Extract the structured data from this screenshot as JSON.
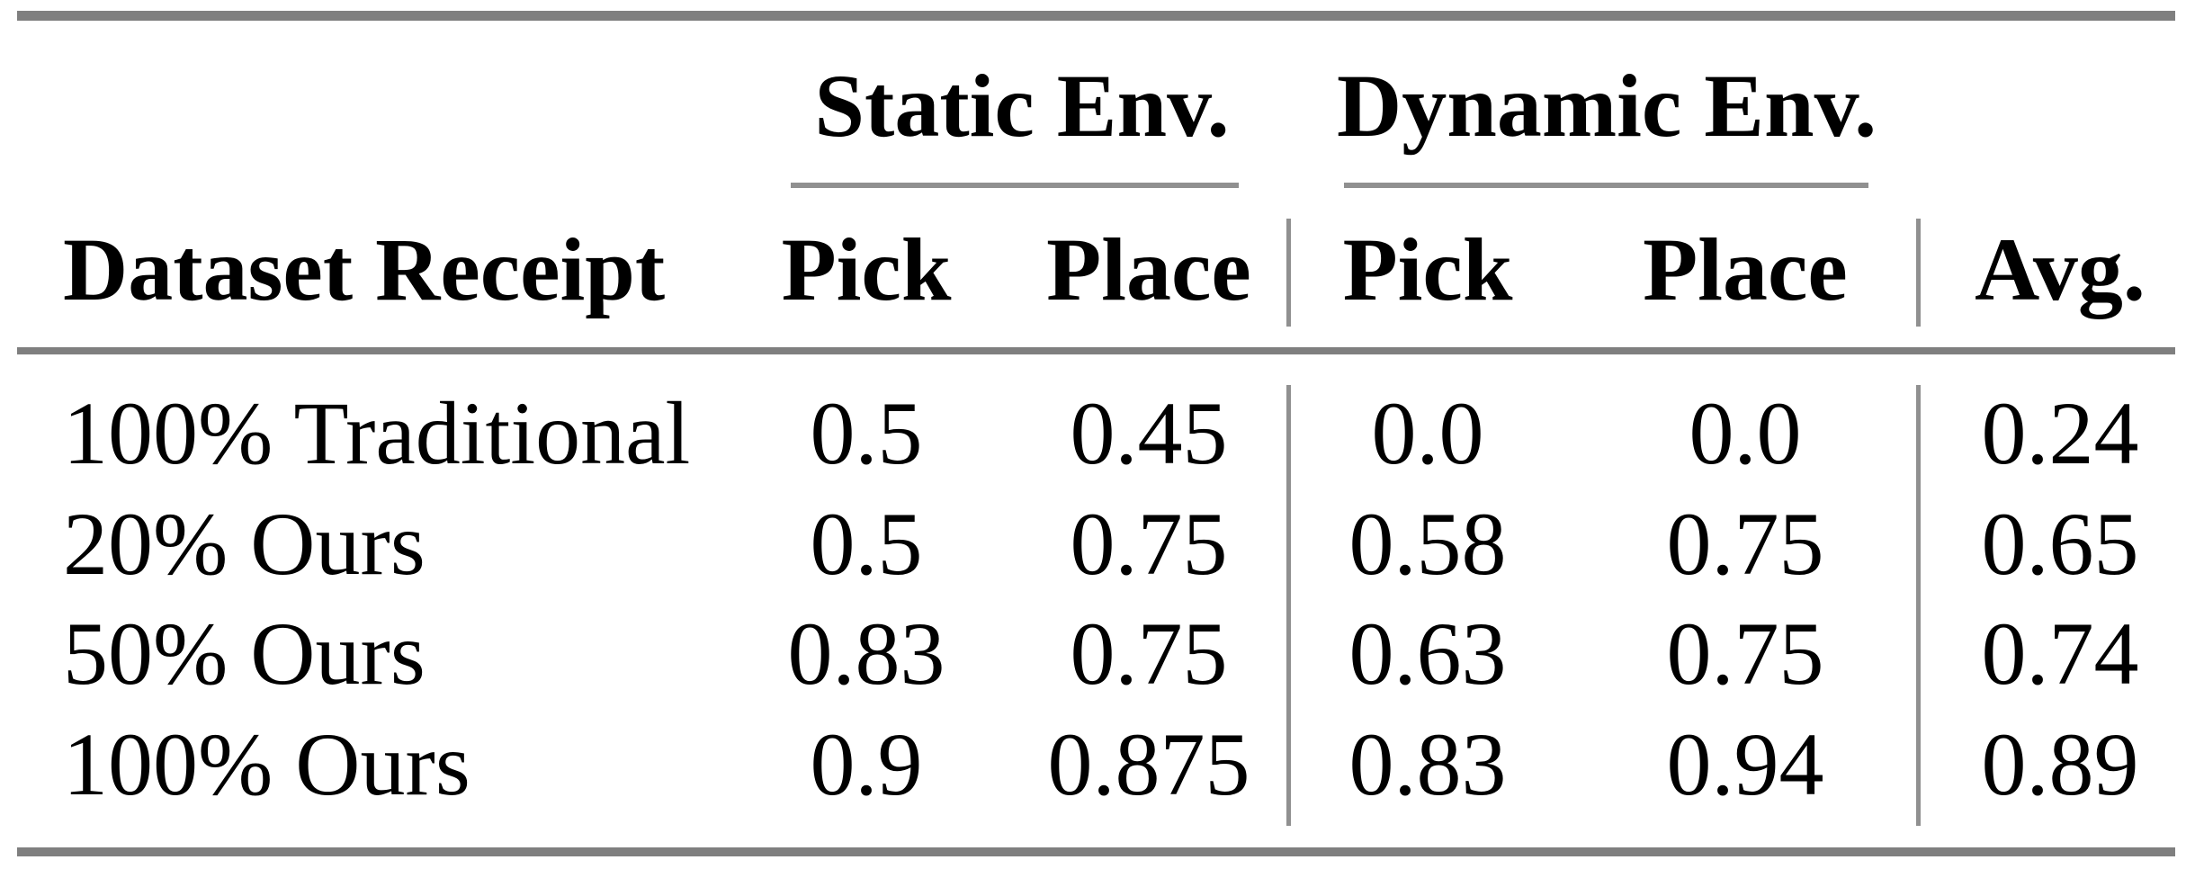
{
  "table": {
    "group_headers": [
      {
        "label": "Static Env."
      },
      {
        "label": "Dynamic Env."
      }
    ],
    "columns": [
      "Dataset Receipt",
      "Pick",
      "Place",
      "Pick",
      "Place",
      "Avg."
    ],
    "rows": [
      {
        "label": "100% Traditional",
        "values": [
          "0.5",
          "0.45",
          "0.0",
          "0.0",
          "0.24"
        ]
      },
      {
        "label": "20% Ours",
        "values": [
          "0.5",
          "0.75",
          "0.58",
          "0.75",
          "0.65"
        ]
      },
      {
        "label": "50% Ours",
        "values": [
          "0.83",
          "0.75",
          "0.63",
          "0.75",
          "0.74"
        ]
      },
      {
        "label": "100% Ours",
        "values": [
          "0.9",
          "0.875",
          "0.83",
          "0.94",
          "0.89"
        ]
      }
    ],
    "colors": {
      "heavy_rule": "#7f7f7f",
      "light_rule": "#909090",
      "text": "#000000",
      "background": "#ffffff"
    }
  },
  "chart_data": {
    "type": "table",
    "title": "",
    "column_groups": [
      {
        "label": "Static Env.",
        "columns": [
          "Pick",
          "Place"
        ]
      },
      {
        "label": "Dynamic Env.",
        "columns": [
          "Pick",
          "Place"
        ]
      }
    ],
    "columns": [
      "Dataset Receipt",
      "Static Env. Pick",
      "Static Env. Place",
      "Dynamic Env. Pick",
      "Dynamic Env. Place",
      "Avg."
    ],
    "rows": [
      [
        "100% Traditional",
        0.5,
        0.45,
        0.0,
        0.0,
        0.24
      ],
      [
        "20% Ours",
        0.5,
        0.75,
        0.58,
        0.75,
        0.65
      ],
      [
        "50% Ours",
        0.83,
        0.75,
        0.63,
        0.75,
        0.74
      ],
      [
        "100% Ours",
        0.9,
        0.875,
        0.83,
        0.94,
        0.89
      ]
    ]
  }
}
